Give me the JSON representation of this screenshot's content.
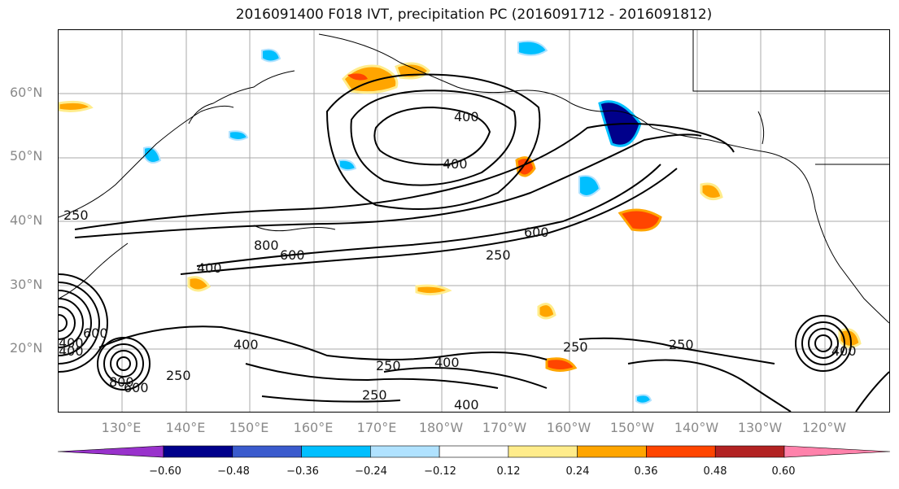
{
  "title": "2016091400 F018 IVT, precipitation PC (2016091712 - 2016091812)",
  "lat_labels": [
    "60°N",
    "50°N",
    "40°N",
    "30°N",
    "20°N"
  ],
  "lon_labels": [
    "130°E",
    "140°E",
    "150°E",
    "160°E",
    "170°E",
    "180°W",
    "170°W",
    "160°W",
    "150°W",
    "140°W",
    "130°W",
    "120°W"
  ],
  "ivt_contour_labels": [
    "400",
    "400",
    "250",
    "800",
    "600",
    "400",
    "600",
    "250",
    "400",
    "250",
    "250",
    "400",
    "250",
    "400",
    "800",
    "600",
    "250",
    "250",
    "400",
    "600",
    "400",
    "400"
  ],
  "colorbar": {
    "ticks": [
      "−0.60",
      "−0.48",
      "−0.36",
      "−0.24",
      "−0.12",
      "0.12",
      "0.24",
      "0.36",
      "0.48",
      "0.60"
    ],
    "colors": [
      "#9932cc",
      "#00008b",
      "#3a5bcd",
      "#00bfff",
      "#b0e2ff",
      "#ffffff",
      "#ffec8b",
      "#ffa500",
      "#ff4500",
      "#b22222",
      "#ff82ab"
    ]
  }
}
